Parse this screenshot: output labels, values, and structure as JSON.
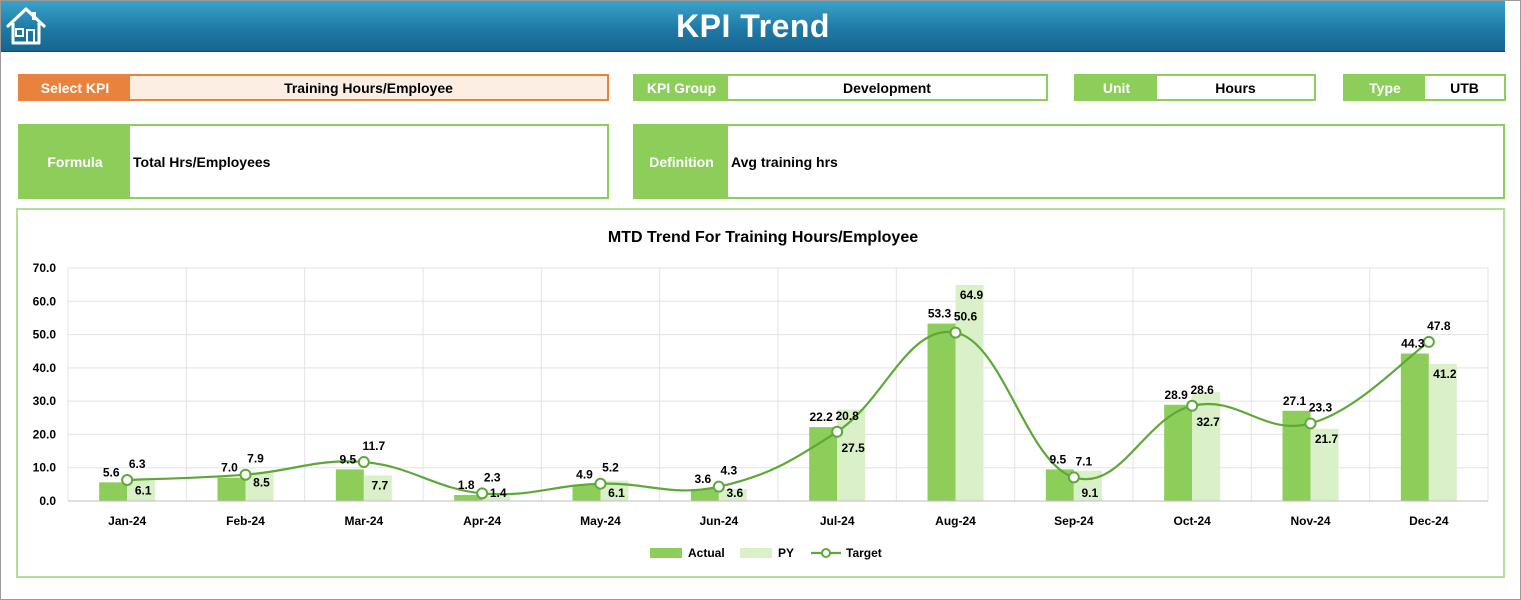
{
  "header": {
    "title": "KPI Trend",
    "home_icon": "home-icon"
  },
  "colors": {
    "header_blue": "#1f7aa6",
    "accent_green": "#8dce5a",
    "select_orange": "#e8823c",
    "actual_bar": "#8dce5a",
    "py_bar": "#d9f0c9",
    "target_line": "#5ea83a"
  },
  "select_kpi": {
    "label": "Select KPI",
    "value": "Training Hours/Employee"
  },
  "kpi_group": {
    "label": "KPI Group",
    "value": "Development"
  },
  "unit": {
    "label": "Unit",
    "value": "Hours"
  },
  "type": {
    "label": "Type",
    "value": "UTB"
  },
  "formula": {
    "label": "Formula",
    "value": "Total Hrs/Employees"
  },
  "definition": {
    "label": "Definition",
    "value": "Avg training hrs"
  },
  "chart_data": {
    "type": "bar",
    "title": "MTD Trend For Training Hours/Employee",
    "categories": [
      "Jan-24",
      "Feb-24",
      "Mar-24",
      "Apr-24",
      "May-24",
      "Jun-24",
      "Jul-24",
      "Aug-24",
      "Sep-24",
      "Oct-24",
      "Nov-24",
      "Dec-24"
    ],
    "series": [
      {
        "name": "Actual",
        "type": "bar",
        "values": [
          5.6,
          7.0,
          9.5,
          1.8,
          4.9,
          3.6,
          22.2,
          53.3,
          9.5,
          28.9,
          27.1,
          44.3
        ],
        "labels": [
          "5.6",
          "7.0",
          "9.5",
          "1.8",
          "4.9",
          "3.6",
          "22.2",
          "53.3",
          "9.5",
          "28.9",
          "27.1",
          "44.3"
        ]
      },
      {
        "name": "PY",
        "type": "bar",
        "values": [
          6.1,
          8.5,
          7.7,
          1.4,
          6.1,
          3.6,
          27.5,
          64.9,
          9.1,
          32.7,
          21.7,
          41.2
        ],
        "labels": [
          "6.1",
          "8.5",
          "7.7",
          "1.4",
          "6.1",
          "3.6",
          "27.5",
          "64.9",
          "9.1",
          "32.7",
          "21.7",
          "41.2"
        ]
      },
      {
        "name": "Target",
        "type": "line",
        "values": [
          6.3,
          7.9,
          11.7,
          2.3,
          5.2,
          4.3,
          20.8,
          50.6,
          7.1,
          28.6,
          23.3,
          47.8
        ],
        "labels": [
          "6.3",
          "7.9",
          "11.7",
          "2.3",
          "5.2",
          "4.3",
          "20.8",
          "50.6",
          "7.1",
          "28.6",
          "23.3",
          "47.8"
        ]
      }
    ],
    "y_ticks": [
      "0.0",
      "10.0",
      "20.0",
      "30.0",
      "40.0",
      "50.0",
      "60.0",
      "70.0"
    ],
    "ylim": [
      0,
      70
    ],
    "grid": true,
    "legend_position": "bottom"
  }
}
